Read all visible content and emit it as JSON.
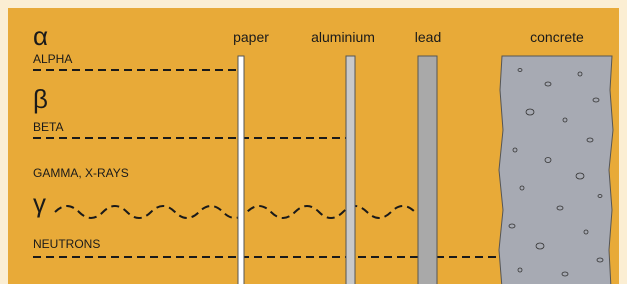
{
  "materials": [
    "paper",
    "aluminium",
    "lead",
    "concrete"
  ],
  "radiations": [
    {
      "symbol": "α",
      "label": "ALPHA"
    },
    {
      "symbol": "β",
      "label": "BETA"
    },
    {
      "symbol": "γ",
      "label": "GAMMA, X-RAYS"
    },
    {
      "label": "NEUTRONS"
    }
  ]
}
